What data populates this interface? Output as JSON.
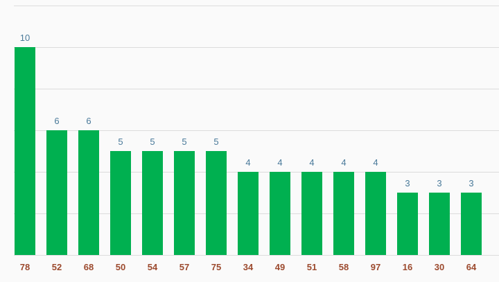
{
  "chart_data": {
    "type": "bar",
    "categories": [
      "78",
      "52",
      "68",
      "50",
      "54",
      "57",
      "75",
      "34",
      "49",
      "51",
      "58",
      "97",
      "16",
      "30",
      "64"
    ],
    "values": [
      10,
      6,
      6,
      5,
      5,
      5,
      5,
      4,
      4,
      4,
      4,
      4,
      3,
      3,
      3
    ],
    "title": "",
    "xlabel": "",
    "ylabel": "",
    "ylim": [
      0,
      12
    ],
    "grid": true,
    "legend": "none",
    "colors": {
      "bar": "#00b050",
      "value_label": "#4a7a9a",
      "category_label": "#9c4a2e",
      "grid": "#dcdcdc"
    }
  }
}
